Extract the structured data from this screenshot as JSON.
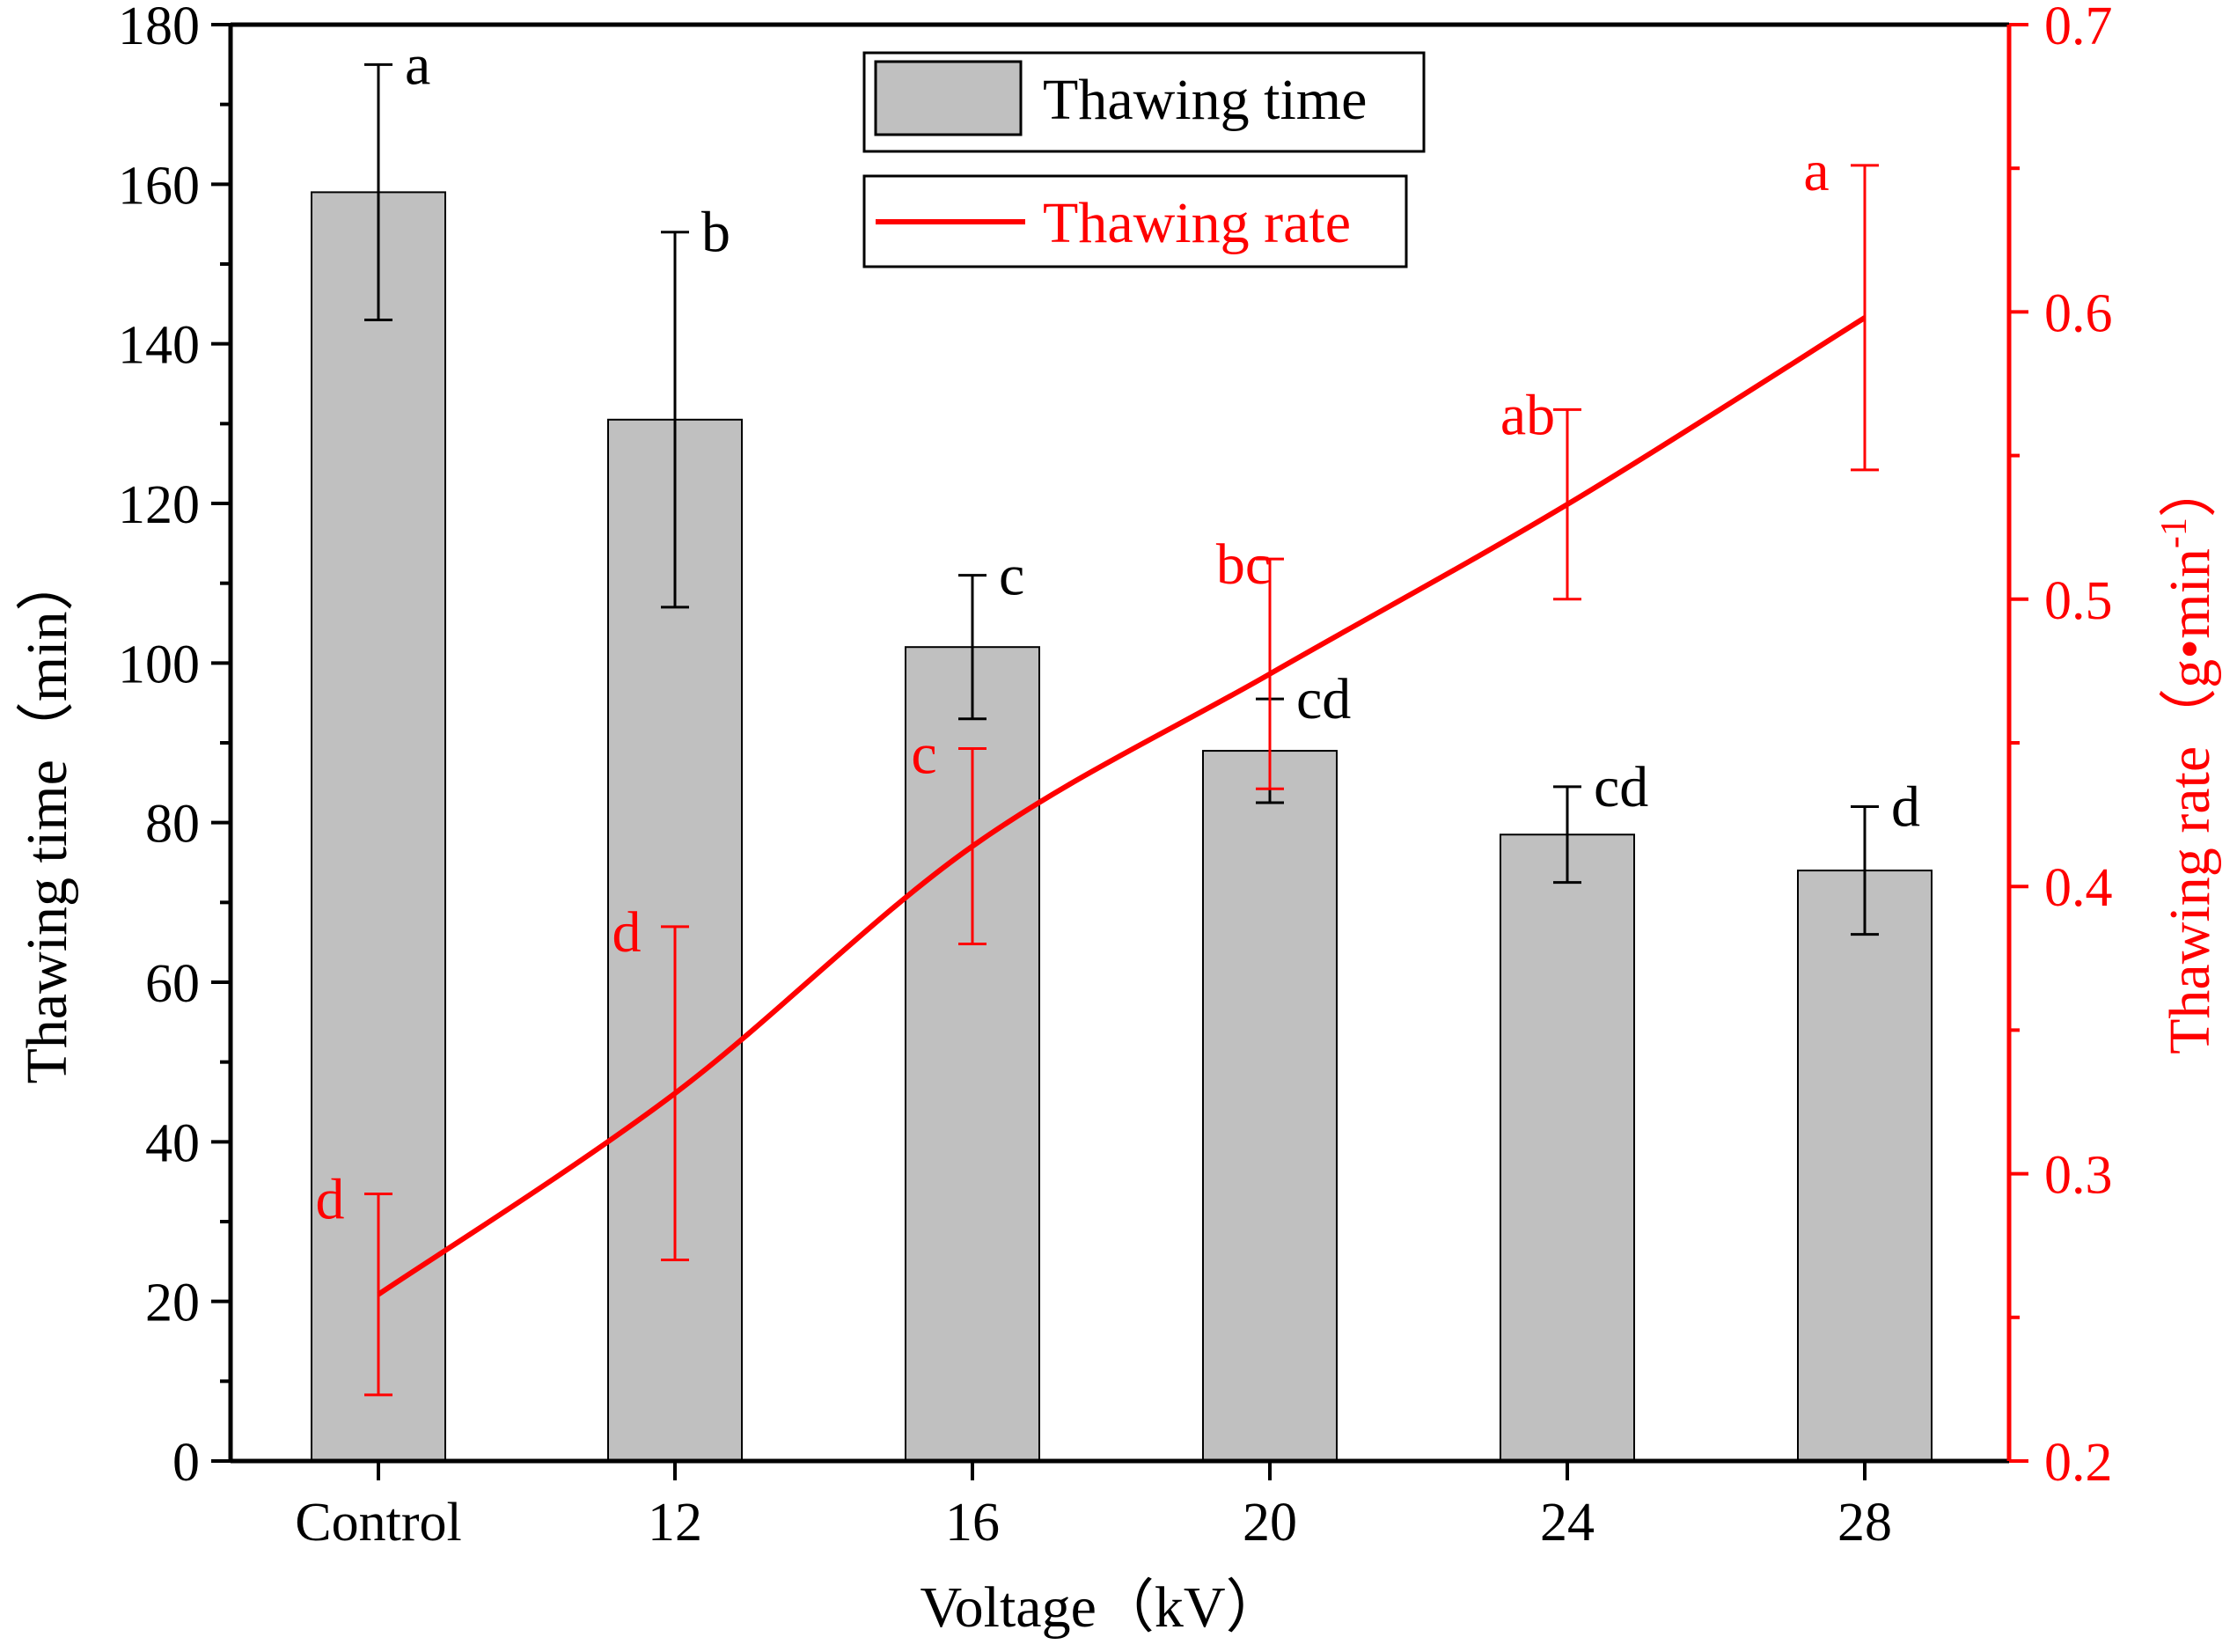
{
  "colors": {
    "bar_fill": "#c0c0c0",
    "bar_stroke": "#000000",
    "line": "#ff0000",
    "axis_left": "#000000",
    "axis_right": "#ff0000"
  },
  "chart_data": {
    "type": "bar+line",
    "categories": [
      "Control",
      "12",
      "16",
      "20",
      "24",
      "28"
    ],
    "xlabel": "Voltage（kV）",
    "series": [
      {
        "name": "Thawing time",
        "type": "bar",
        "axis": "left",
        "values": [
          159,
          130.5,
          102,
          89,
          78.5,
          74
        ],
        "error": [
          16,
          23.5,
          9,
          6.5,
          6,
          8
        ],
        "letters": [
          "a",
          "b",
          "c",
          "cd",
          "cd",
          "d"
        ]
      },
      {
        "name": "Thawing rate",
        "type": "line",
        "axis": "right",
        "values": [
          0.258,
          0.328,
          0.414,
          0.474,
          0.533,
          0.598
        ],
        "error": [
          0.035,
          0.058,
          0.034,
          0.04,
          0.033,
          0.053
        ],
        "letters": [
          "d",
          "d",
          "c",
          "bc",
          "ab",
          "a"
        ]
      }
    ],
    "y_left": {
      "label": "Thawing time（min）",
      "range": [
        0,
        180
      ],
      "ticks": [
        "0",
        "20",
        "40",
        "60",
        "80",
        "100",
        "120",
        "140",
        "160",
        "180"
      ]
    },
    "y_right": {
      "label_main": "Thawing rate（g•min",
      "label_sup": "-1",
      "label_close": "）",
      "range": [
        0.2,
        0.7
      ],
      "ticks": [
        "0.2",
        "0.3",
        "0.4",
        "0.5",
        "0.6",
        "0.7"
      ]
    },
    "legend": {
      "position": "top-center",
      "bar_label": "Thawing time",
      "line_label": "Thawing rate"
    }
  }
}
